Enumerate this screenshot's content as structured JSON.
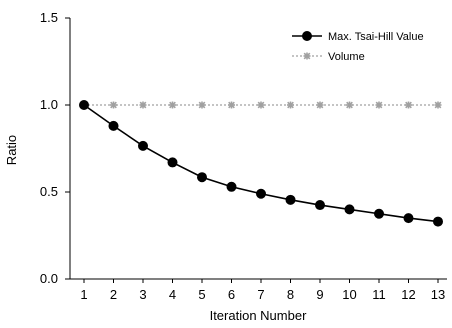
{
  "chart_data": {
    "type": "line",
    "xlabel": "Iteration Number",
    "ylabel": "Ratio",
    "categories": [
      "1",
      "2",
      "3",
      "4",
      "5",
      "6",
      "7",
      "8",
      "9",
      "10",
      "11",
      "12",
      "13"
    ],
    "ylim": [
      0.0,
      1.5
    ],
    "yticks": [
      "0.0",
      "0.5",
      "1.0",
      "1.5"
    ],
    "grid": false,
    "legend_position": "top-right",
    "series": [
      {
        "name": "Max. Tsai-Hill Value",
        "values": [
          1.0,
          0.88,
          0.765,
          0.67,
          0.585,
          0.53,
          0.49,
          0.455,
          0.425,
          0.4,
          0.375,
          0.35,
          0.33
        ],
        "color": "#000000",
        "marker": "circle",
        "line": "solid"
      },
      {
        "name": "Volume",
        "values": [
          1.0,
          1.0,
          1.0,
          1.0,
          1.0,
          1.0,
          1.0,
          1.0,
          1.0,
          1.0,
          1.0,
          1.0,
          1.0
        ],
        "color": "#a0a0a0",
        "marker": "asterisk",
        "line": "dotted"
      }
    ]
  }
}
